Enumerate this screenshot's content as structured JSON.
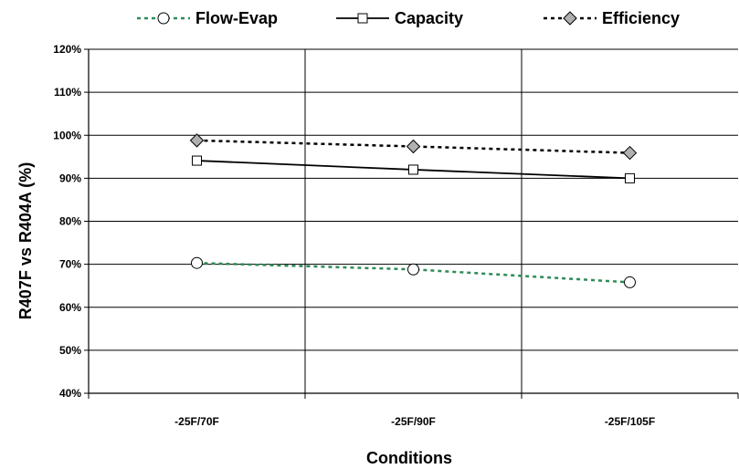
{
  "chart_data": {
    "type": "line",
    "categories": [
      "-25F/70F",
      "-25F/90F",
      "-25F/105F"
    ],
    "xlabel": "Conditions",
    "ylabel": "R407F vs R404A (%)",
    "ylim": [
      40,
      120
    ],
    "ytick_step": 10,
    "yticks": [
      "40%",
      "50%",
      "60%",
      "70%",
      "80%",
      "90%",
      "100%",
      "110%",
      "120%"
    ],
    "grid": true,
    "legend_position": "top",
    "series": [
      {
        "name": "Flow-Evap",
        "values": [
          70.3,
          68.8,
          65.8
        ],
        "color": "#2e8b57",
        "marker": "circle",
        "line_style": "dotted"
      },
      {
        "name": "Capacity",
        "values": [
          94.1,
          92.0,
          90.0
        ],
        "color": "#000000",
        "marker": "square",
        "line_style": "solid"
      },
      {
        "name": "Efficiency",
        "values": [
          98.8,
          97.4,
          95.9
        ],
        "color": "#000000",
        "marker": "diamond",
        "line_style": "dotted"
      }
    ]
  }
}
